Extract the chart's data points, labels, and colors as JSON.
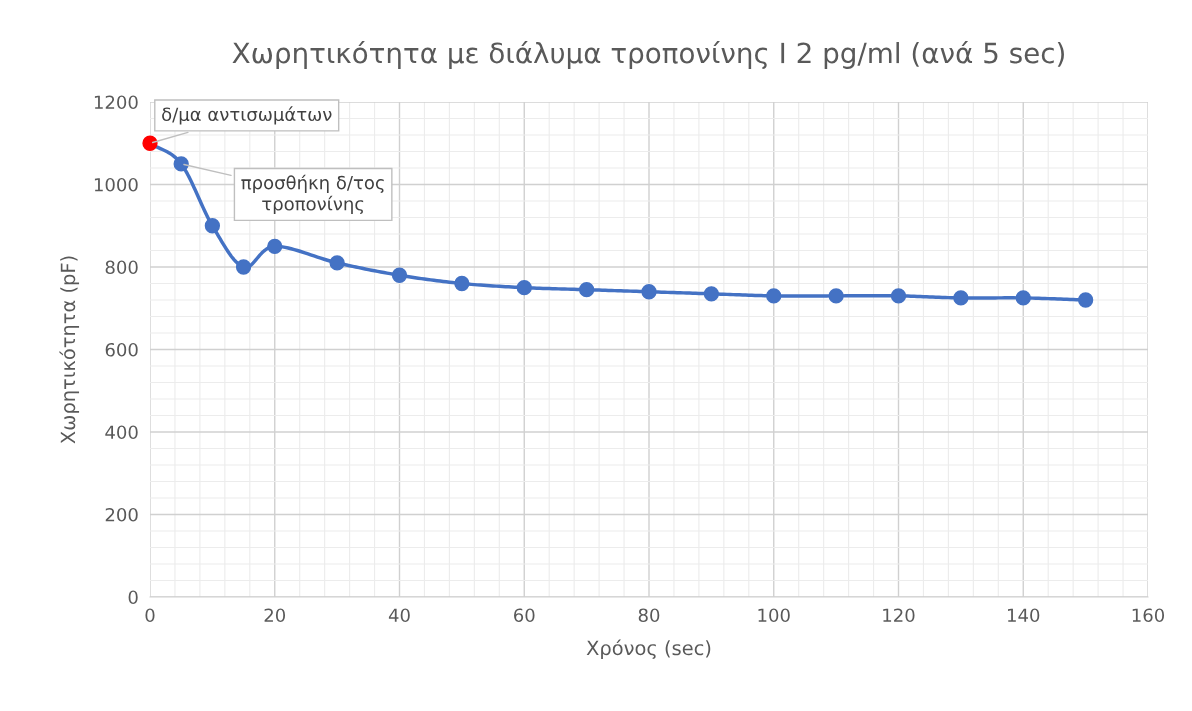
{
  "chart_data": {
    "type": "line",
    "title": "Χωρητικότητα με διάλυμα τροπονίνης I 2 pg/ml (ανά 5 sec)",
    "xlabel": "Χρόνος (sec)",
    "ylabel": "Χωρητικότητα (pF)",
    "x": [
      0,
      5,
      10,
      15,
      20,
      30,
      40,
      50,
      60,
      70,
      80,
      90,
      100,
      110,
      120,
      130,
      140,
      150
    ],
    "series": [
      {
        "color": "#4472c4",
        "values": [
          1100,
          1050,
          900,
          800,
          850,
          810,
          780,
          760,
          750,
          745,
          740,
          735,
          730,
          730,
          730,
          725,
          725,
          720
        ],
        "colors": [
          "#ff0000",
          "#4472c4",
          "#4472c4",
          "#4472c4",
          "#4472c4",
          "#4472c4",
          "#4472c4",
          "#4472c4",
          "#4472c4",
          "#4472c4",
          "#4472c4",
          "#4472c4",
          "#4472c4",
          "#4472c4",
          "#4472c4",
          "#4472c4",
          "#4472c4",
          "#4472c4"
        ]
      }
    ],
    "xlim": [
      0,
      160
    ],
    "xticks": [
      0,
      20,
      40,
      60,
      80,
      100,
      120,
      140,
      160
    ],
    "ylim": [
      0,
      1200
    ],
    "yticks": [
      0,
      200,
      400,
      600,
      800,
      1000,
      1200
    ],
    "grid": true,
    "marker": "circle",
    "line_style": "solid",
    "legend": false,
    "annotations": [
      {
        "text": "δ/μα αντισωμάτων",
        "x": 0,
        "y": 1100
      },
      {
        "text": "προσθήκη δ/τος\nτροπονίνης",
        "x": 5,
        "y": 1050
      }
    ]
  }
}
